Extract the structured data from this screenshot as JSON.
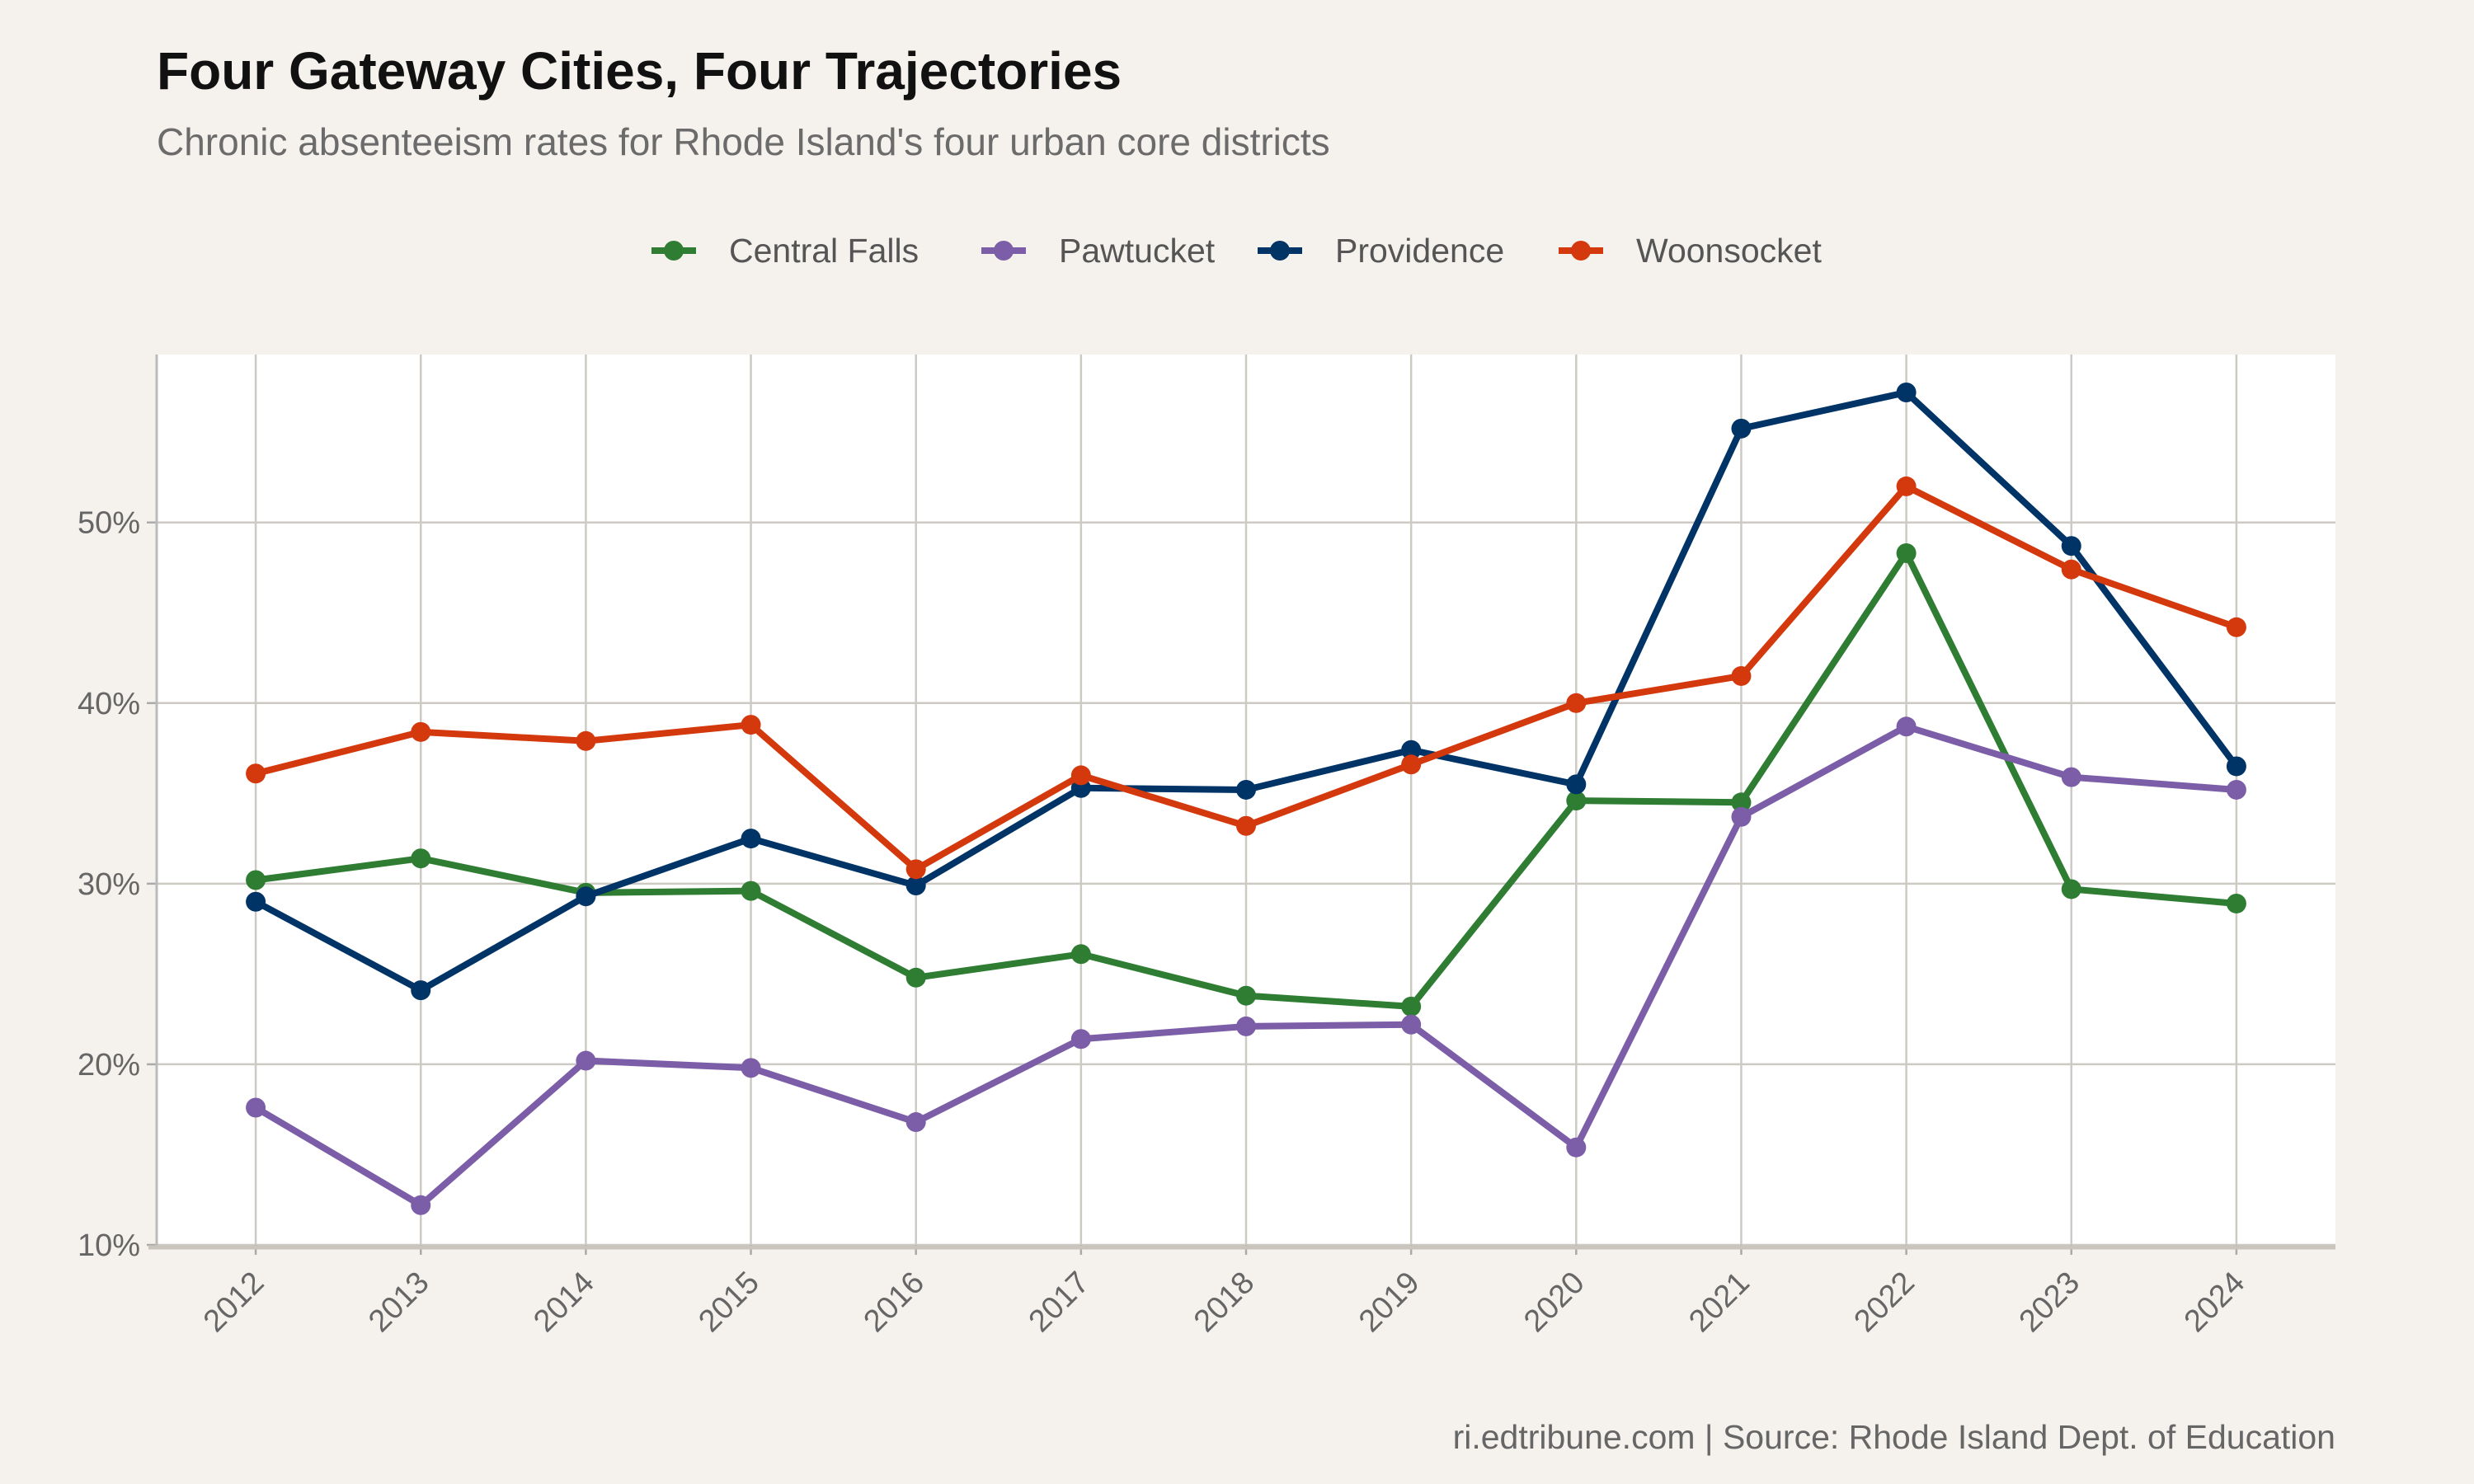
{
  "chart_data": {
    "type": "line",
    "title": "Four Gateway Cities, Four Trajectories",
    "subtitle": "Chronic absenteeism rates for Rhode Island's four urban core districts",
    "caption": "ri.edtribune.com | Source: Rhode Island Dept. of Education",
    "xlabel": "",
    "ylabel": "",
    "x": [
      2012,
      2013,
      2014,
      2015,
      2016,
      2017,
      2018,
      2019,
      2020,
      2021,
      2022,
      2023,
      2024
    ],
    "x_tick_labels": [
      "2012",
      "2013",
      "2014",
      "2015",
      "2016",
      "2017",
      "2018",
      "2019",
      "2020",
      "2021",
      "2022",
      "2023",
      "2024"
    ],
    "y_ticks": [
      10,
      20,
      30,
      40,
      50
    ],
    "y_tick_labels": [
      "10%",
      "20%",
      "30%",
      "40%",
      "50%"
    ],
    "ylim": [
      10,
      59.3
    ],
    "xlim": [
      2011.4,
      2024.6
    ],
    "grid": true,
    "legend_position": "top",
    "series": [
      {
        "name": "Central Falls",
        "color": "#2e7d32",
        "values": [
          30.2,
          31.4,
          29.5,
          29.6,
          24.8,
          26.1,
          23.8,
          23.2,
          34.6,
          34.5,
          48.3,
          29.7,
          28.9
        ]
      },
      {
        "name": "Pawtucket",
        "color": "#7b5ea7",
        "values": [
          17.6,
          12.2,
          20.2,
          19.8,
          16.8,
          21.4,
          22.1,
          22.2,
          15.4,
          33.7,
          38.7,
          35.9,
          35.2
        ]
      },
      {
        "name": "Providence",
        "color": "#003366",
        "values": [
          29.0,
          24.1,
          29.3,
          32.5,
          29.9,
          35.3,
          35.2,
          37.4,
          35.5,
          55.2,
          57.2,
          48.7,
          36.5
        ]
      },
      {
        "name": "Woonsocket",
        "color": "#d4380d",
        "values": [
          36.1,
          38.4,
          37.9,
          38.8,
          30.8,
          36.0,
          33.2,
          36.6,
          40.0,
          41.5,
          52.0,
          47.4,
          44.2
        ]
      }
    ]
  }
}
